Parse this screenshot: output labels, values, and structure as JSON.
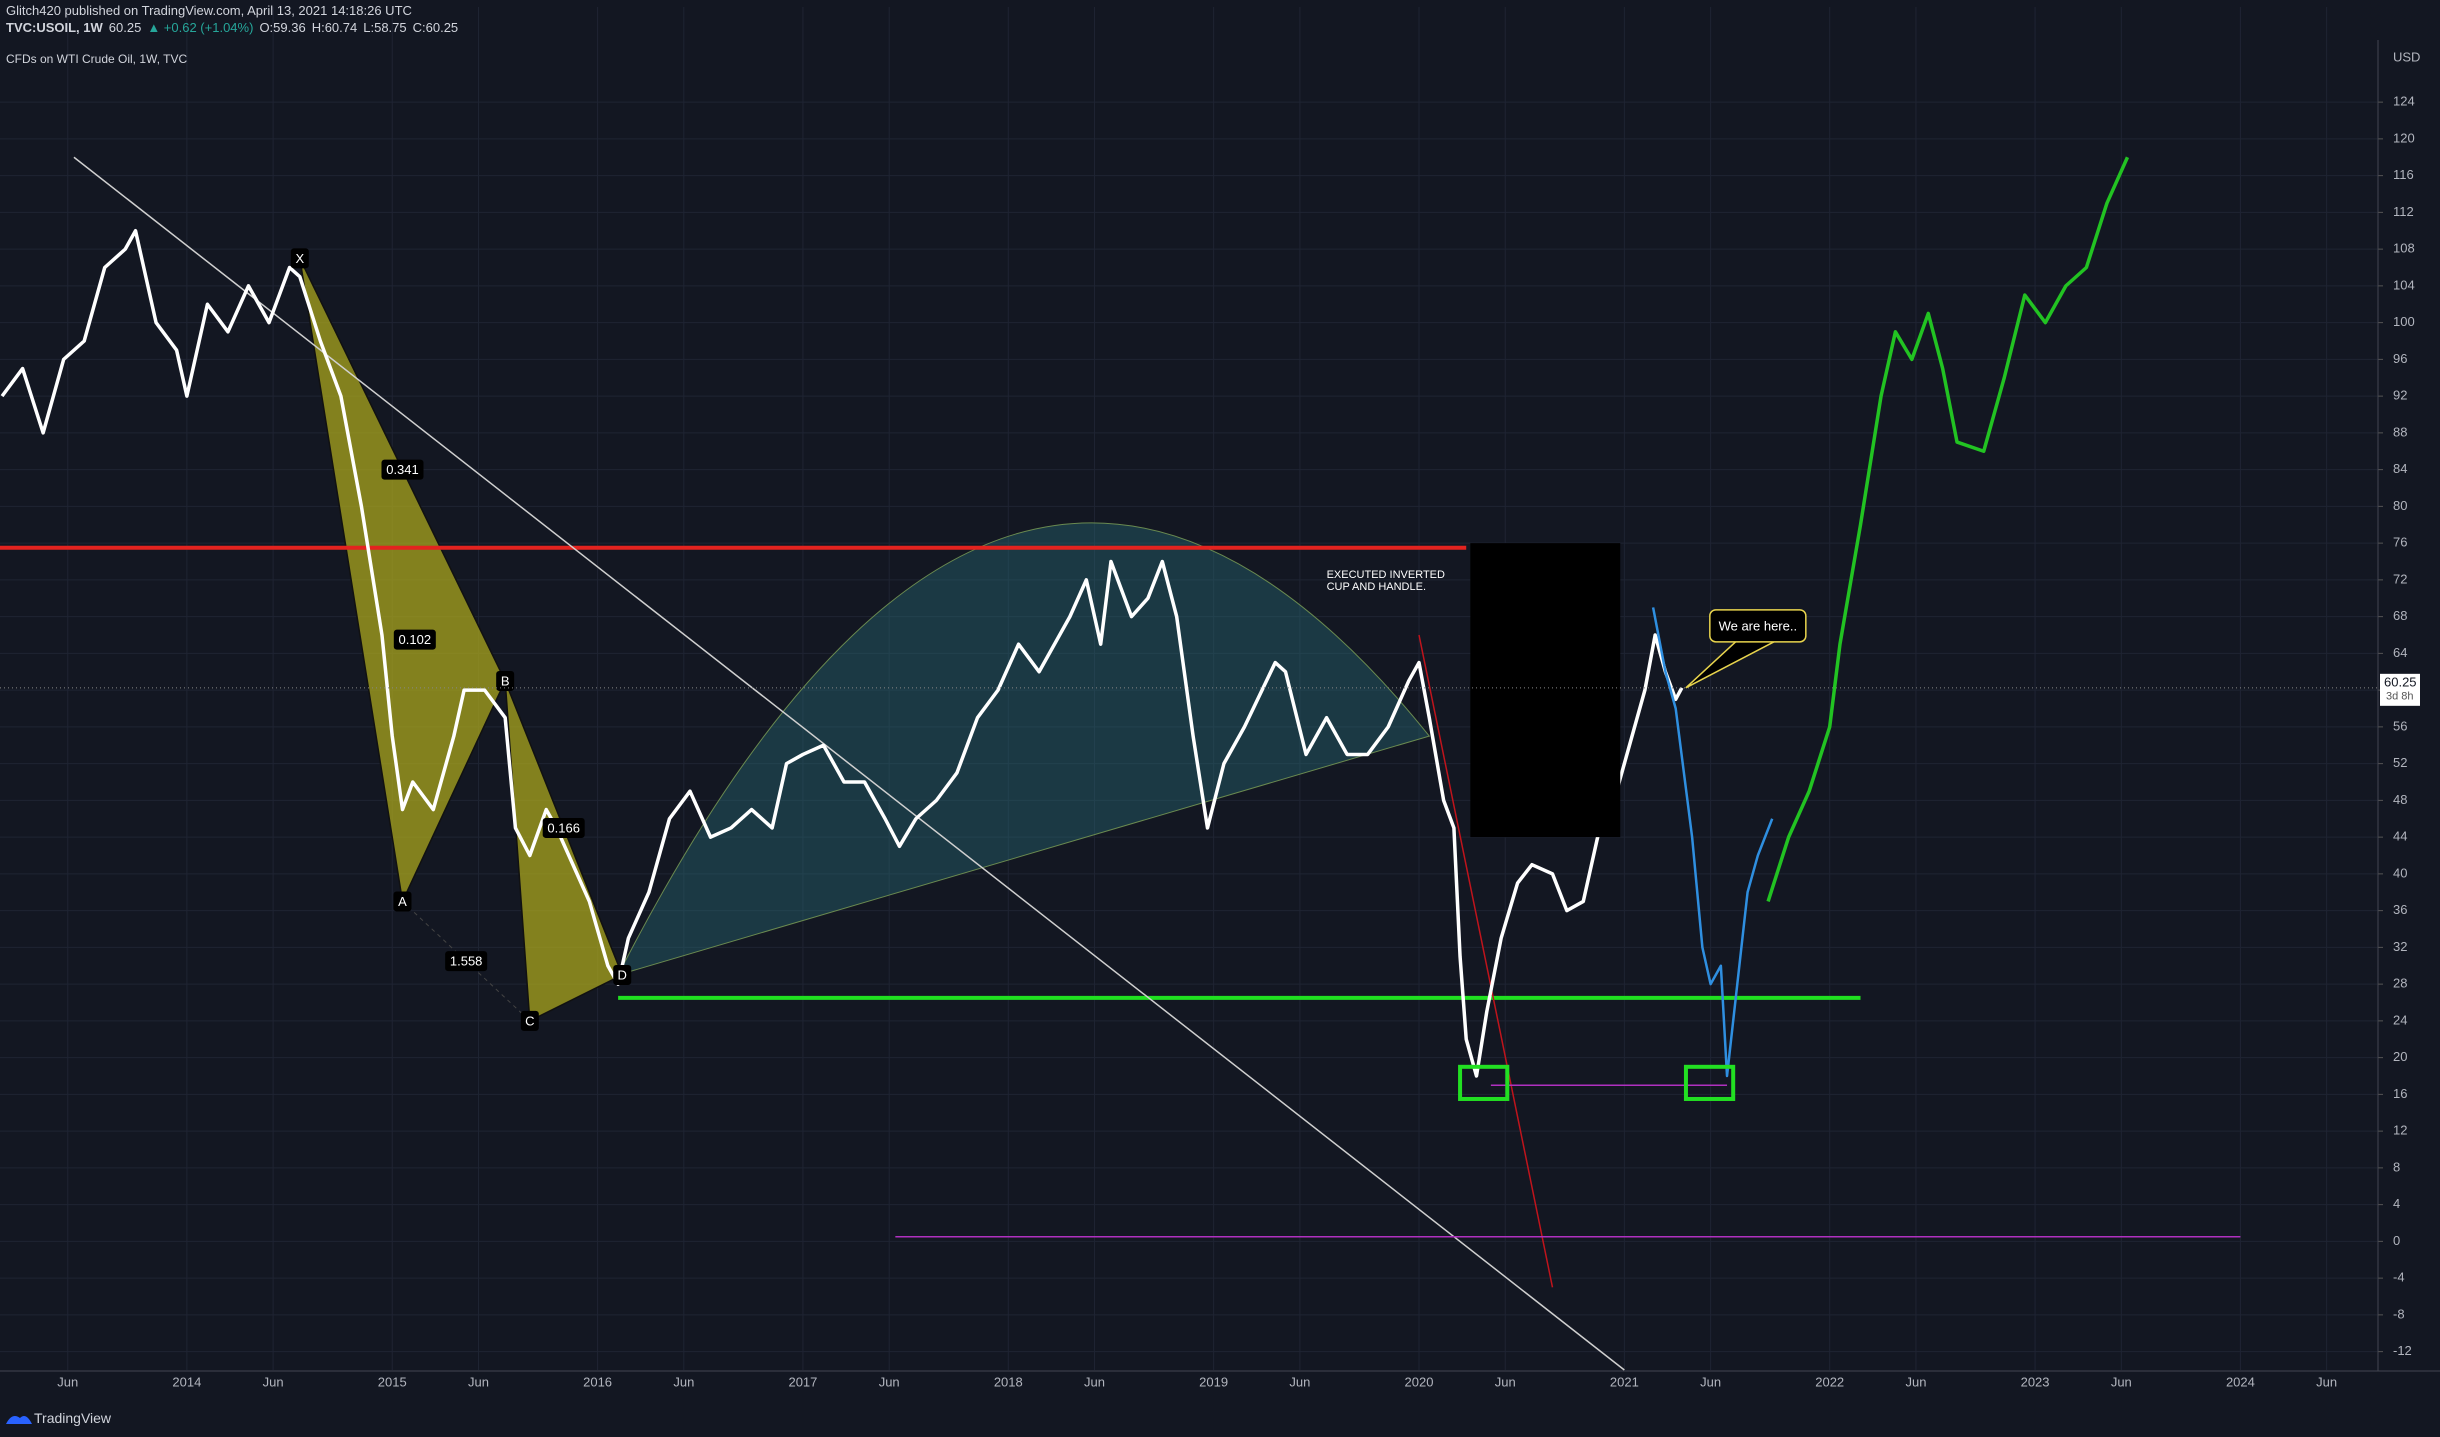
{
  "header": {
    "author_line": "Glitch420 published on TradingView.com, April 13, 2021 14:18:26 UTC",
    "symbol": "TVC:USOIL, 1W",
    "price": "60.25",
    "change": "▲ +0.62 (+1.04%)",
    "open": "O:59.36",
    "high": "H:60.74",
    "low": "L:58.75",
    "close": "C:60.25"
  },
  "footer": {
    "brand": "TradingView"
  },
  "chart_data": {
    "type": "line",
    "legend_text": "CFDs on WTI Crude Oil, 1W, TVC",
    "currency": "USD",
    "xlim": [
      2013.09,
      2024.67
    ],
    "ylim": [
      -14,
      130
    ],
    "xticks": [
      {
        "value": 2013.42,
        "label": "Jun"
      },
      2014,
      {
        "value": 2014.42,
        "label": "Jun"
      },
      2015,
      {
        "value": 2015.42,
        "label": "Jun"
      },
      2016,
      {
        "value": 2016.42,
        "label": "Jun"
      },
      2017,
      {
        "value": 2017.42,
        "label": "Jun"
      },
      2018,
      {
        "value": 2018.42,
        "label": "Jun"
      },
      2019,
      {
        "value": 2019.42,
        "label": "Jun"
      },
      2020,
      {
        "value": 2020.42,
        "label": "Jun"
      },
      2021,
      {
        "value": 2021.42,
        "label": "Jun"
      },
      2022,
      {
        "value": 2022.42,
        "label": "Jun"
      },
      2023,
      {
        "value": 2023.42,
        "label": "Jun"
      },
      2024,
      {
        "value": 2024.42,
        "label": "Jun"
      }
    ],
    "yticks": [
      -12,
      -8,
      -4,
      0,
      4,
      8,
      12,
      16,
      20,
      24,
      28,
      32,
      36,
      40,
      44,
      48,
      52,
      56,
      60,
      64,
      68,
      72,
      76,
      80,
      84,
      88,
      92,
      96,
      100,
      104,
      108,
      112,
      116,
      120,
      124
    ],
    "grid": true,
    "series": [
      {
        "name": "USOIL",
        "color": "#ffffff",
        "x": [
          2013.1,
          2013.2,
          2013.3,
          2013.4,
          2013.5,
          2013.6,
          2013.7,
          2013.75,
          2013.85,
          2013.95,
          2014.0,
          2014.1,
          2014.2,
          2014.3,
          2014.4,
          2014.5,
          2014.55,
          2014.65,
          2014.75,
          2014.85,
          2014.95,
          2015.0,
          2015.05,
          2015.1,
          2015.2,
          2015.3,
          2015.35,
          2015.45,
          2015.55,
          2015.6,
          2015.67,
          2015.75,
          2015.8,
          2015.9,
          2015.96,
          2016.05,
          2016.1,
          2016.15,
          2016.25,
          2016.35,
          2016.45,
          2016.55,
          2016.65,
          2016.75,
          2016.85,
          2016.92,
          2017.0,
          2017.1,
          2017.2,
          2017.3,
          2017.4,
          2017.47,
          2017.55,
          2017.65,
          2017.75,
          2017.85,
          2017.95,
          2018.05,
          2018.15,
          2018.3,
          2018.38,
          2018.45,
          2018.5,
          2018.6,
          2018.68,
          2018.75,
          2018.82,
          2018.9,
          2018.97,
          2019.05,
          2019.15,
          2019.3,
          2019.35,
          2019.45,
          2019.55,
          2019.65,
          2019.75,
          2019.85,
          2019.95,
          2020.0,
          2020.05,
          2020.12,
          2020.17,
          2020.2,
          2020.23,
          2020.28,
          2020.33,
          2020.4,
          2020.48,
          2020.55,
          2020.65,
          2020.72,
          2020.8,
          2020.88,
          2020.95,
          2021.0,
          2021.1,
          2021.15,
          2021.2,
          2021.25,
          2021.28
        ],
        "values": [
          92,
          95,
          88,
          96,
          98,
          106,
          108,
          110,
          100,
          97,
          92,
          102,
          99,
          104,
          100,
          106,
          105,
          98,
          92,
          80,
          66,
          55,
          47,
          50,
          47,
          55,
          60,
          60,
          57,
          45,
          42,
          47,
          45,
          40,
          37,
          30,
          28,
          33,
          38,
          46,
          49,
          44,
          45,
          47,
          45,
          52,
          53,
          54,
          50,
          50,
          46,
          43,
          46,
          48,
          51,
          57,
          60,
          65,
          62,
          68,
          72,
          65,
          74,
          68,
          70,
          74,
          68,
          55,
          45,
          52,
          56,
          63,
          62,
          53,
          57,
          53,
          53,
          56,
          61,
          63,
          57,
          48,
          45,
          31,
          22,
          18,
          25,
          33,
          39,
          41,
          40,
          36,
          37,
          45,
          48,
          52,
          60,
          66,
          62,
          59,
          60.25
        ]
      },
      {
        "name": "Projection",
        "color": "#2f8fe0",
        "x": [
          2021.14,
          2021.2,
          2021.25,
          2021.33,
          2021.38,
          2021.42,
          2021.47,
          2021.5,
          2021.55,
          2021.6,
          2021.65,
          2021.72
        ],
        "values": [
          69,
          62,
          58,
          44,
          32,
          28,
          30,
          18,
          28,
          38,
          42,
          46
        ]
      },
      {
        "name": "Forecast",
        "color": "#22c322",
        "x": [
          2021.7,
          2021.8,
          2021.9,
          2022.0,
          2022.05,
          2022.15,
          2022.25,
          2022.32,
          2022.4,
          2022.48,
          2022.55,
          2022.62,
          2022.75,
          2022.85,
          2022.95,
          2023.05,
          2023.15,
          2023.25,
          2023.35,
          2023.45
        ],
        "values": [
          37,
          44,
          49,
          56,
          65,
          78,
          92,
          99,
          96,
          101,
          95,
          87,
          86,
          94,
          103,
          100,
          104,
          106,
          113,
          118
        ]
      }
    ],
    "lines": [
      {
        "color": "#e3231f",
        "x": [
          2013.09,
          2020.23
        ],
        "y": [
          75.5,
          75.5
        ]
      },
      {
        "color": "#20e020",
        "x": [
          2016.1,
          2022.15
        ],
        "y": [
          26.5,
          26.5
        ]
      },
      {
        "color": "#d0d0d0",
        "x": [
          2013.45,
          2021.0
        ],
        "y": [
          118,
          -14
        ]
      },
      {
        "color": "#c0141c",
        "x": [
          2020.0,
          2020.65
        ],
        "y": [
          66,
          -5
        ]
      },
      {
        "color": "#b030c0",
        "x": [
          2017.45,
          2024.0
        ],
        "y": [
          0.5,
          0.5
        ]
      },
      {
        "color": "#b030c0",
        "x": [
          2020.35,
          2021.5
        ],
        "y": [
          17,
          17
        ]
      }
    ],
    "cup": {
      "x": [
        2016.1,
        2018.0,
        2020.05
      ],
      "y": [
        29,
        77,
        55
      ]
    },
    "blackout": {
      "x": [
        2020.25,
        2020.98
      ],
      "y": [
        44,
        76
      ]
    },
    "boxes": [
      {
        "x": [
          2020.2,
          2020.43
        ],
        "y": [
          15.5,
          19
        ]
      },
      {
        "x": [
          2021.3,
          2021.53
        ],
        "y": [
          15.5,
          19
        ]
      }
    ],
    "pattern": {
      "points": [
        {
          "label": "X",
          "x": 2014.55,
          "y": 107
        },
        {
          "label": "A",
          "x": 2015.05,
          "y": 37
        },
        {
          "label": "B",
          "x": 2015.55,
          "y": 61
        },
        {
          "label": "C",
          "x": 2015.67,
          "y": 24
        },
        {
          "label": "D",
          "x": 2016.12,
          "y": 29
        }
      ],
      "ratios": [
        {
          "value": 0.341,
          "legs": [
            0,
            2
          ]
        },
        {
          "value": 0.102,
          "legs": [
            0,
            3
          ]
        },
        {
          "value": 0.166,
          "legs": [
            2,
            4
          ]
        },
        {
          "value": 1.558,
          "legs": [
            1,
            3
          ]
        }
      ]
    },
    "annotation": {
      "lines": [
        "EXECUTED INVERTED",
        "CUP AND HANDLE."
      ],
      "x": 2019.55,
      "y": 72.5
    },
    "callout": {
      "text": "We are here..",
      "x": 2021.65,
      "y": 67
    },
    "last_price": 60.25,
    "countdown": "3d 8h"
  }
}
